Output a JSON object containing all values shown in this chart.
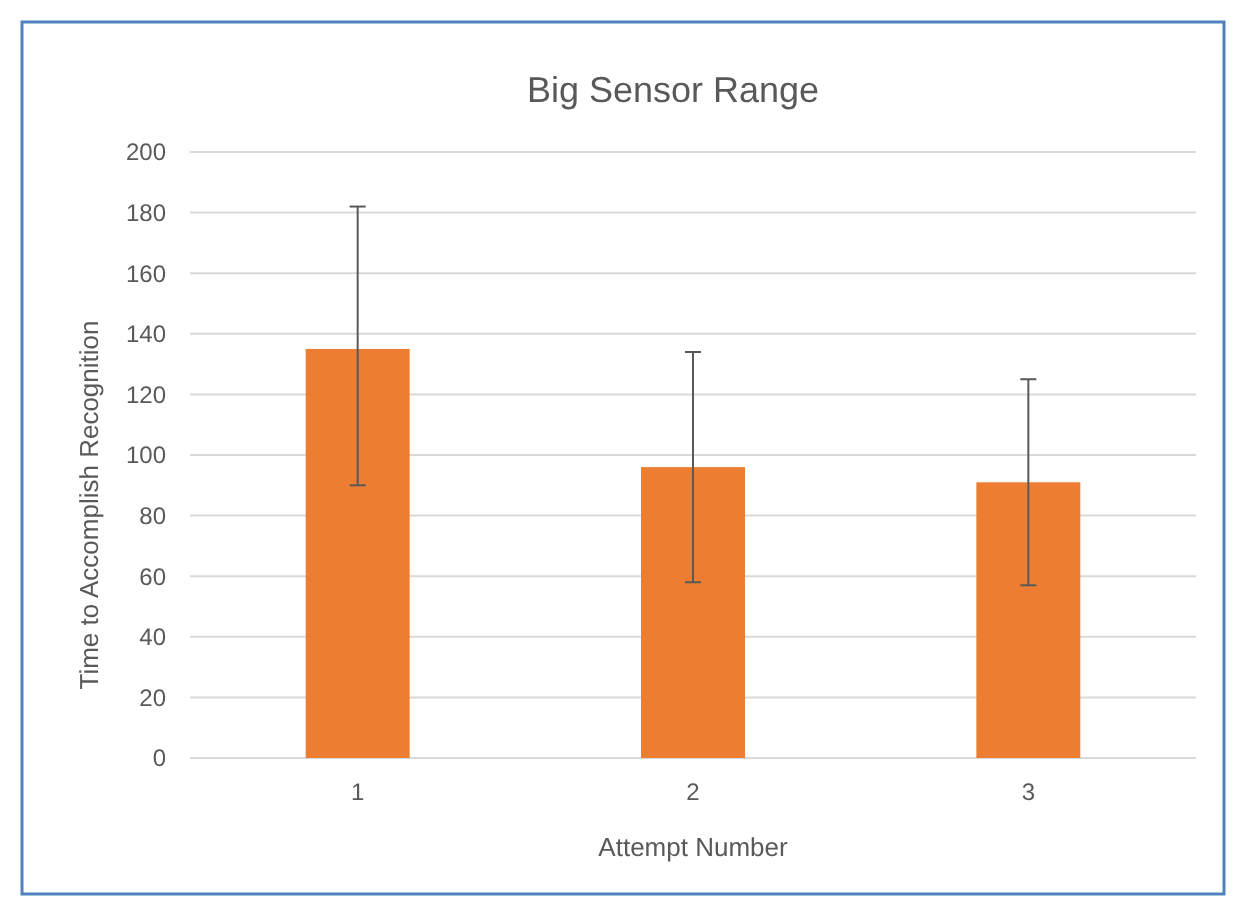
{
  "chart_data": {
    "type": "bar",
    "title": "Big Sensor Range",
    "xlabel": "Attempt Number",
    "ylabel": "Time to Accomplish Recognition",
    "categories": [
      "1",
      "2",
      "3"
    ],
    "values": [
      135,
      96,
      91
    ],
    "errors": [
      [
        90,
        182
      ],
      [
        58,
        134
      ],
      [
        57,
        125
      ]
    ],
    "color": "#ed7d31",
    "ylim": [
      0,
      200
    ],
    "yticks": [
      0,
      20,
      40,
      60,
      80,
      100,
      120,
      140,
      160,
      180,
      200
    ],
    "grid": "y"
  }
}
